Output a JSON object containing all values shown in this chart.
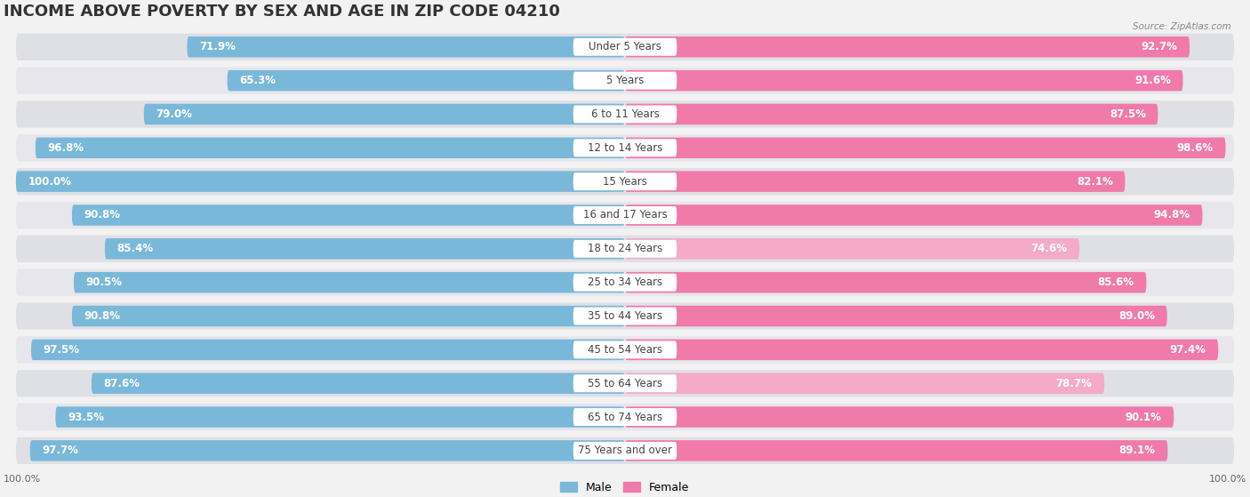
{
  "title": "INCOME ABOVE POVERTY BY SEX AND AGE IN ZIP CODE 04210",
  "source": "Source: ZipAtlas.com",
  "categories": [
    "Under 5 Years",
    "5 Years",
    "6 to 11 Years",
    "12 to 14 Years",
    "15 Years",
    "16 and 17 Years",
    "18 to 24 Years",
    "25 to 34 Years",
    "35 to 44 Years",
    "45 to 54 Years",
    "55 to 64 Years",
    "65 to 74 Years",
    "75 Years and over"
  ],
  "male_values": [
    71.9,
    65.3,
    79.0,
    96.8,
    100.0,
    90.8,
    85.4,
    90.5,
    90.8,
    97.5,
    87.6,
    93.5,
    97.7
  ],
  "female_values": [
    92.7,
    91.6,
    87.5,
    98.6,
    82.1,
    94.8,
    74.6,
    85.6,
    89.0,
    97.4,
    78.7,
    90.1,
    89.1
  ],
  "male_color": "#7ab8d9",
  "female_color": "#f07aaa",
  "female_light_color": "#f5aac8",
  "row_bg_color": "#e8e8ec",
  "row_bg_dark": "#dcdce0",
  "background_color": "#f2f2f2",
  "max_value": 100.0,
  "title_fontsize": 13,
  "label_fontsize": 8.5,
  "value_fontsize": 8.5
}
